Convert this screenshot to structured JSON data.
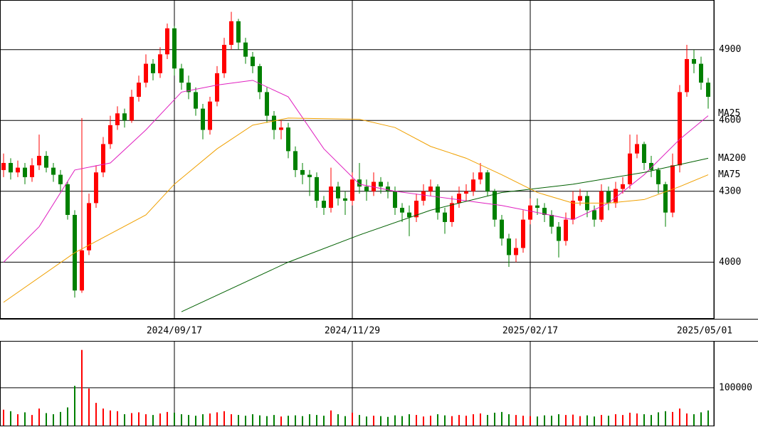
{
  "chart_data": {
    "type": "candlestick",
    "xlim": [
      -0.5,
      99.8
    ],
    "xticks": [
      {
        "value": 24,
        "label": "2024/09/17"
      },
      {
        "value": 49,
        "label": "2024/11/29"
      },
      {
        "value": 74,
        "label": "2025/02/17"
      },
      {
        "value": 99.8,
        "label": "2025/05/01"
      }
    ],
    "ylim": [
      3760,
      5110
    ],
    "yticks": [
      4000,
      4300,
      4600,
      4900
    ],
    "up_color": "#ff0000",
    "down_color": "#008000",
    "open": [
      4390,
      4420,
      4380,
      4400,
      4360,
      4410,
      4450,
      4400,
      4370,
      4330,
      4200,
      3880,
      4050,
      4250,
      4380,
      4500,
      4580,
      4630,
      4600,
      4700,
      4760,
      4840,
      4800,
      4880,
      4990,
      4820,
      4760,
      4720,
      4650,
      4560,
      4680,
      4800,
      4920,
      5020,
      4930,
      4870,
      4830,
      4720,
      4620,
      4560,
      4570,
      4470,
      4390,
      4370,
      4360,
      4260,
      4230,
      4320,
      4270,
      4260,
      4350,
      4320,
      4300,
      4340,
      4320,
      4300,
      4230,
      4210,
      4190,
      4260,
      4300,
      4320,
      4210,
      4170,
      4250,
      4290,
      4300,
      4350,
      4380,
      4300,
      4180,
      4100,
      4030,
      4060,
      4180,
      4240,
      4230,
      4200,
      4150,
      4090,
      4180,
      4260,
      4280,
      4220,
      4180,
      4300,
      4250,
      4310,
      4330,
      4460,
      4500,
      4420,
      4390,
      4330,
      4210,
      4410,
      4720,
      4860,
      4840,
      4760
    ],
    "high": [
      4460,
      4440,
      4430,
      4420,
      4440,
      4540,
      4470,
      4420,
      4390,
      4340,
      4220,
      4610,
      4290,
      4410,
      4530,
      4620,
      4660,
      4650,
      4730,
      4790,
      4880,
      4860,
      4910,
      5010,
      5000,
      4840,
      4790,
      4740,
      4670,
      4700,
      4830,
      4950,
      5060,
      5030,
      4950,
      4890,
      4840,
      4740,
      4640,
      4600,
      4590,
      4490,
      4420,
      4390,
      4380,
      4280,
      4400,
      4340,
      4300,
      4380,
      4420,
      4350,
      4380,
      4360,
      4340,
      4320,
      4250,
      4240,
      4290,
      4330,
      4350,
      4330,
      4230,
      4280,
      4320,
      4330,
      4380,
      4420,
      4390,
      4310,
      4200,
      4120,
      4100,
      4220,
      4270,
      4270,
      4250,
      4220,
      4170,
      4210,
      4300,
      4310,
      4300,
      4240,
      4330,
      4320,
      4340,
      4360,
      4540,
      4540,
      4510,
      4450,
      4400,
      4340,
      4460,
      4750,
      4920,
      4900,
      4870,
      4780
    ],
    "low": [
      4360,
      4350,
      4360,
      4330,
      4340,
      4390,
      4380,
      4340,
      4300,
      4180,
      3850,
      3870,
      4030,
      4230,
      4360,
      4480,
      4560,
      4570,
      4590,
      4680,
      4740,
      4770,
      4780,
      4860,
      4790,
      4730,
      4690,
      4620,
      4520,
      4540,
      4660,
      4780,
      4900,
      4900,
      4840,
      4800,
      4690,
      4590,
      4520,
      4520,
      4440,
      4360,
      4330,
      4280,
      4230,
      4200,
      4210,
      4240,
      4200,
      4240,
      4290,
      4260,
      4280,
      4290,
      4270,
      4200,
      4170,
      4110,
      4170,
      4240,
      4280,
      4180,
      4120,
      4150,
      4230,
      4260,
      4280,
      4330,
      4280,
      4150,
      4070,
      3980,
      4000,
      4040,
      4160,
      4200,
      4170,
      4120,
      4020,
      4070,
      4160,
      4240,
      4190,
      4150,
      4170,
      4220,
      4230,
      4290,
      4310,
      4440,
      4390,
      4360,
      4290,
      4150,
      4190,
      4380,
      4700,
      4800,
      4730,
      4650
    ],
    "close": [
      4420,
      4380,
      4400,
      4360,
      4410,
      4450,
      4400,
      4370,
      4330,
      4200,
      3880,
      4050,
      4250,
      4380,
      4500,
      4580,
      4630,
      4600,
      4700,
      4760,
      4840,
      4800,
      4880,
      4990,
      4820,
      4760,
      4720,
      4650,
      4560,
      4680,
      4800,
      4920,
      5020,
      4930,
      4870,
      4830,
      4720,
      4620,
      4560,
      4570,
      4470,
      4390,
      4370,
      4360,
      4260,
      4230,
      4320,
      4270,
      4260,
      4350,
      4320,
      4300,
      4340,
      4320,
      4300,
      4230,
      4210,
      4190,
      4260,
      4300,
      4320,
      4210,
      4170,
      4250,
      4290,
      4300,
      4350,
      4380,
      4300,
      4180,
      4100,
      4030,
      4060,
      4180,
      4240,
      4230,
      4200,
      4150,
      4090,
      4180,
      4260,
      4280,
      4220,
      4180,
      4300,
      4250,
      4310,
      4330,
      4460,
      4500,
      4420,
      4390,
      4330,
      4210,
      4410,
      4720,
      4860,
      4840,
      4760,
      4700
    ],
    "series": [
      {
        "name": "MA25",
        "color": "#e020c0",
        "x": [
          0,
          5,
          10,
          15,
          20,
          25,
          30,
          35,
          40,
          45,
          50,
          55,
          60,
          65,
          70,
          75,
          80,
          85,
          90,
          95,
          99
        ],
        "values": [
          4000,
          4150,
          4390,
          4420,
          4560,
          4720,
          4750,
          4770,
          4700,
          4480,
          4330,
          4300,
          4280,
          4260,
          4240,
          4210,
          4180,
          4250,
          4370,
          4520,
          4620
        ]
      },
      {
        "name": "MA200",
        "color": "#006000",
        "x": [
          25,
          40,
          50,
          60,
          70,
          80,
          90,
          99
        ],
        "values": [
          3790,
          4000,
          4115,
          4220,
          4295,
          4330,
          4380,
          4440
        ]
      },
      {
        "name": "MA75",
        "color": "#f0a000",
        "x": [
          0,
          10,
          20,
          24,
          30,
          35,
          40,
          50,
          55,
          60,
          65,
          70,
          75,
          80,
          85,
          90,
          95,
          99
        ],
        "values": [
          3830,
          4040,
          4200,
          4330,
          4480,
          4580,
          4610,
          4605,
          4570,
          4490,
          4440,
          4370,
          4295,
          4250,
          4250,
          4265,
          4320,
          4370
        ]
      }
    ],
    "volume": {
      "ylim": [
        0,
        222000
      ],
      "yticks": [
        100000
      ],
      "values": [
        42000,
        38000,
        30000,
        35000,
        28000,
        45000,
        33000,
        30000,
        36000,
        48000,
        105000,
        200000,
        98000,
        60000,
        45000,
        40000,
        38000,
        30000,
        33000,
        35000,
        30000,
        28000,
        32000,
        36000,
        34000,
        30000,
        28000,
        26000,
        30000,
        32000,
        35000,
        38000,
        30000,
        28000,
        26000,
        30000,
        27000,
        25000,
        28000,
        24000,
        26000,
        27000,
        25000,
        30000,
        28000,
        26000,
        40000,
        30000,
        25000,
        34000,
        28000,
        24000,
        26000,
        25000,
        23000,
        27000,
        25000,
        30000,
        28000,
        24000,
        26000,
        30000,
        27000,
        25000,
        28000,
        26000,
        30000,
        32000,
        28000,
        34000,
        36000,
        30000,
        28000,
        26000,
        25000,
        24000,
        27000,
        26000,
        30000,
        28000,
        29000,
        25000,
        27000,
        24000,
        28000,
        26000,
        30000,
        28000,
        34000,
        32000,
        30000,
        28000,
        35000,
        38000,
        36000,
        45000,
        32000,
        30000,
        35000,
        40000
      ]
    }
  }
}
